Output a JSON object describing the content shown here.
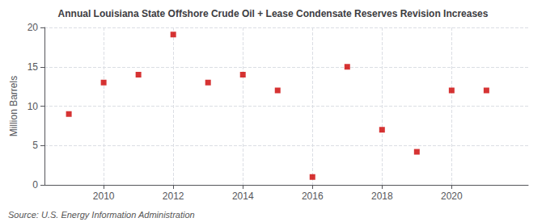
{
  "chart_data": {
    "type": "scatter",
    "title": "Annual Louisiana State Offshore Crude Oil + Lease Condensate Reserves Revision Increases",
    "ylabel": "Million Barrels",
    "annotations": [
      "Source: U.S. Energy Information Administration"
    ],
    "x": [
      2009,
      2010,
      2011,
      2012,
      2013,
      2014,
      2015,
      2016,
      2017,
      2018,
      2019,
      2020,
      2021
    ],
    "values": [
      9.0,
      13.0,
      14.0,
      19.1,
      13.0,
      14.0,
      12.0,
      1.0,
      15.0,
      7.0,
      4.2,
      12.0,
      12.0
    ],
    "color": "#cc0000",
    "marker": "square",
    "xlim": [
      2008.3,
      2022.2
    ],
    "xticks": [
      2010,
      2012,
      2014,
      2016,
      2018,
      2020
    ],
    "ylim": [
      0,
      20
    ],
    "yticks": [
      0,
      5,
      10,
      15,
      20
    ],
    "grid": true
  }
}
